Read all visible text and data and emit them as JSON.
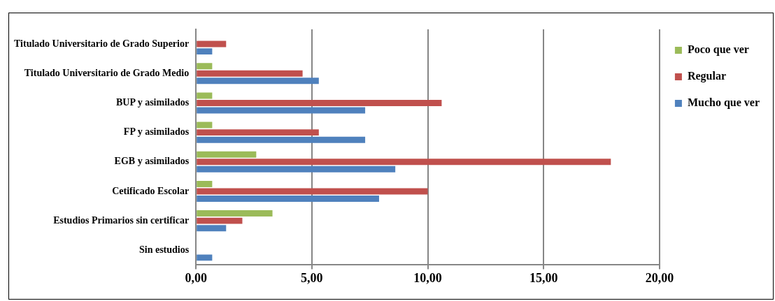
{
  "chart_data": {
    "type": "bar",
    "orientation": "horizontal",
    "categories": [
      "Titulado Universitario de Grado Superior",
      "Titulado Universitario de Grado Medio",
      "BUP y asimilados",
      "FP y asimilados",
      "EGB y asimilados",
      "Cetificado Escolar",
      "Estudios Primarios sin certificar",
      "Sin estudios"
    ],
    "series": [
      {
        "name": "Poco que ver",
        "color": "#9bbb59",
        "values": [
          0,
          0.7,
          0.7,
          0.7,
          2.6,
          0.7,
          3.3,
          0
        ]
      },
      {
        "name": "Regular",
        "color": "#c0504d",
        "values": [
          1.3,
          4.6,
          10.6,
          5.3,
          17.9,
          10.0,
          2.0,
          0
        ]
      },
      {
        "name": "Mucho que ver",
        "color": "#4f81bd",
        "values": [
          0.7,
          5.3,
          7.3,
          7.3,
          8.6,
          7.9,
          1.3,
          0.7
        ]
      }
    ],
    "xlim": [
      0,
      20
    ],
    "xticks": [
      {
        "value": 0,
        "label": "0,00"
      },
      {
        "value": 5,
        "label": "5,00"
      },
      {
        "value": 10,
        "label": "10,00"
      },
      {
        "value": 15,
        "label": "15,00"
      },
      {
        "value": 20,
        "label": "20,00"
      }
    ],
    "grid": "x",
    "legend": "top right"
  }
}
